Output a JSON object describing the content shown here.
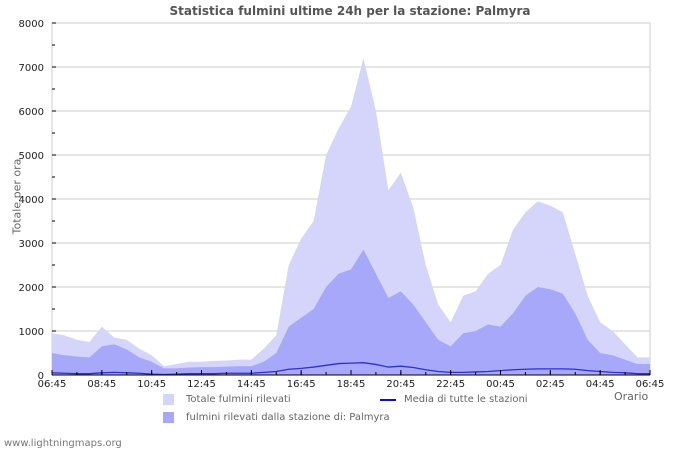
{
  "chart_data": {
    "type": "area",
    "title": "Statistica fulmini ultime 24h per la stazione: Palmyra",
    "xlabel": "Orario",
    "ylabel": "Totale per ora",
    "ylim": [
      0,
      8000
    ],
    "yticks": [
      0,
      1000,
      2000,
      3000,
      4000,
      5000,
      6000,
      7000,
      8000
    ],
    "xticks": [
      "06:45",
      "08:45",
      "10:45",
      "12:45",
      "14:45",
      "16:45",
      "18:45",
      "20:45",
      "22:45",
      "00:45",
      "02:45",
      "04:45",
      "06:45"
    ],
    "grid": true,
    "legend_position": "bottom",
    "x": [
      "06:45",
      "07:15",
      "07:45",
      "08:15",
      "08:45",
      "09:15",
      "09:45",
      "10:15",
      "10:45",
      "11:15",
      "11:45",
      "12:15",
      "12:45",
      "13:15",
      "13:45",
      "14:15",
      "14:45",
      "15:15",
      "15:45",
      "16:15",
      "16:45",
      "17:15",
      "17:45",
      "18:15",
      "18:45",
      "19:15",
      "19:45",
      "20:15",
      "20:45",
      "21:15",
      "21:45",
      "22:15",
      "22:45",
      "23:15",
      "23:45",
      "00:15",
      "00:45",
      "01:15",
      "01:45",
      "02:15",
      "02:45",
      "03:15",
      "03:45",
      "04:15",
      "04:45",
      "05:15",
      "05:45",
      "06:15",
      "06:45"
    ],
    "series": [
      {
        "name": "Totale fulmini rilevati",
        "color": "#d5d5fb",
        "values": [
          950,
          900,
          800,
          750,
          1100,
          850,
          800,
          600,
          450,
          200,
          250,
          300,
          300,
          320,
          330,
          350,
          350,
          600,
          900,
          2500,
          3100,
          3500,
          5000,
          5600,
          6100,
          7200,
          6000,
          4200,
          4600,
          3800,
          2500,
          1600,
          1200,
          1800,
          1900,
          2300,
          2500,
          3300,
          3700,
          3950,
          3850,
          3700,
          2750,
          1800,
          1200,
          1000,
          700,
          400,
          400
        ]
      },
      {
        "name": "fulmini rilevati dalla stazione di: Palmyra",
        "color": "#a8a8fb",
        "values": [
          500,
          450,
          420,
          400,
          650,
          700,
          580,
          400,
          300,
          150,
          150,
          170,
          180,
          180,
          190,
          200,
          200,
          300,
          500,
          1100,
          1300,
          1500,
          2000,
          2300,
          2400,
          2850,
          2300,
          1750,
          1900,
          1600,
          1200,
          800,
          650,
          950,
          1000,
          1150,
          1100,
          1400,
          1800,
          2000,
          1950,
          1850,
          1400,
          800,
          500,
          450,
          350,
          250,
          250
        ]
      },
      {
        "name": "Media di tutte le stazioni",
        "color": "#1010c8",
        "values": [
          50,
          40,
          30,
          30,
          50,
          60,
          50,
          40,
          20,
          10,
          20,
          30,
          30,
          30,
          40,
          40,
          40,
          60,
          80,
          130,
          150,
          180,
          220,
          260,
          270,
          280,
          240,
          180,
          200,
          170,
          120,
          80,
          60,
          60,
          70,
          80,
          100,
          120,
          130,
          140,
          140,
          140,
          130,
          100,
          80,
          60,
          50,
          30,
          30
        ]
      }
    ]
  },
  "ui": {
    "title": "Statistica fulmini ultime 24h per la stazione: Palmyra",
    "ylabel": "Totale per ora",
    "xlabel": "Orario",
    "legend": {
      "total": "Totale fulmini rilevati",
      "station": "fulmini rilevati dalla stazione di: Palmyra",
      "average": "Media di tutte le stazioni"
    },
    "footer": "www.lightningmaps.org"
  }
}
